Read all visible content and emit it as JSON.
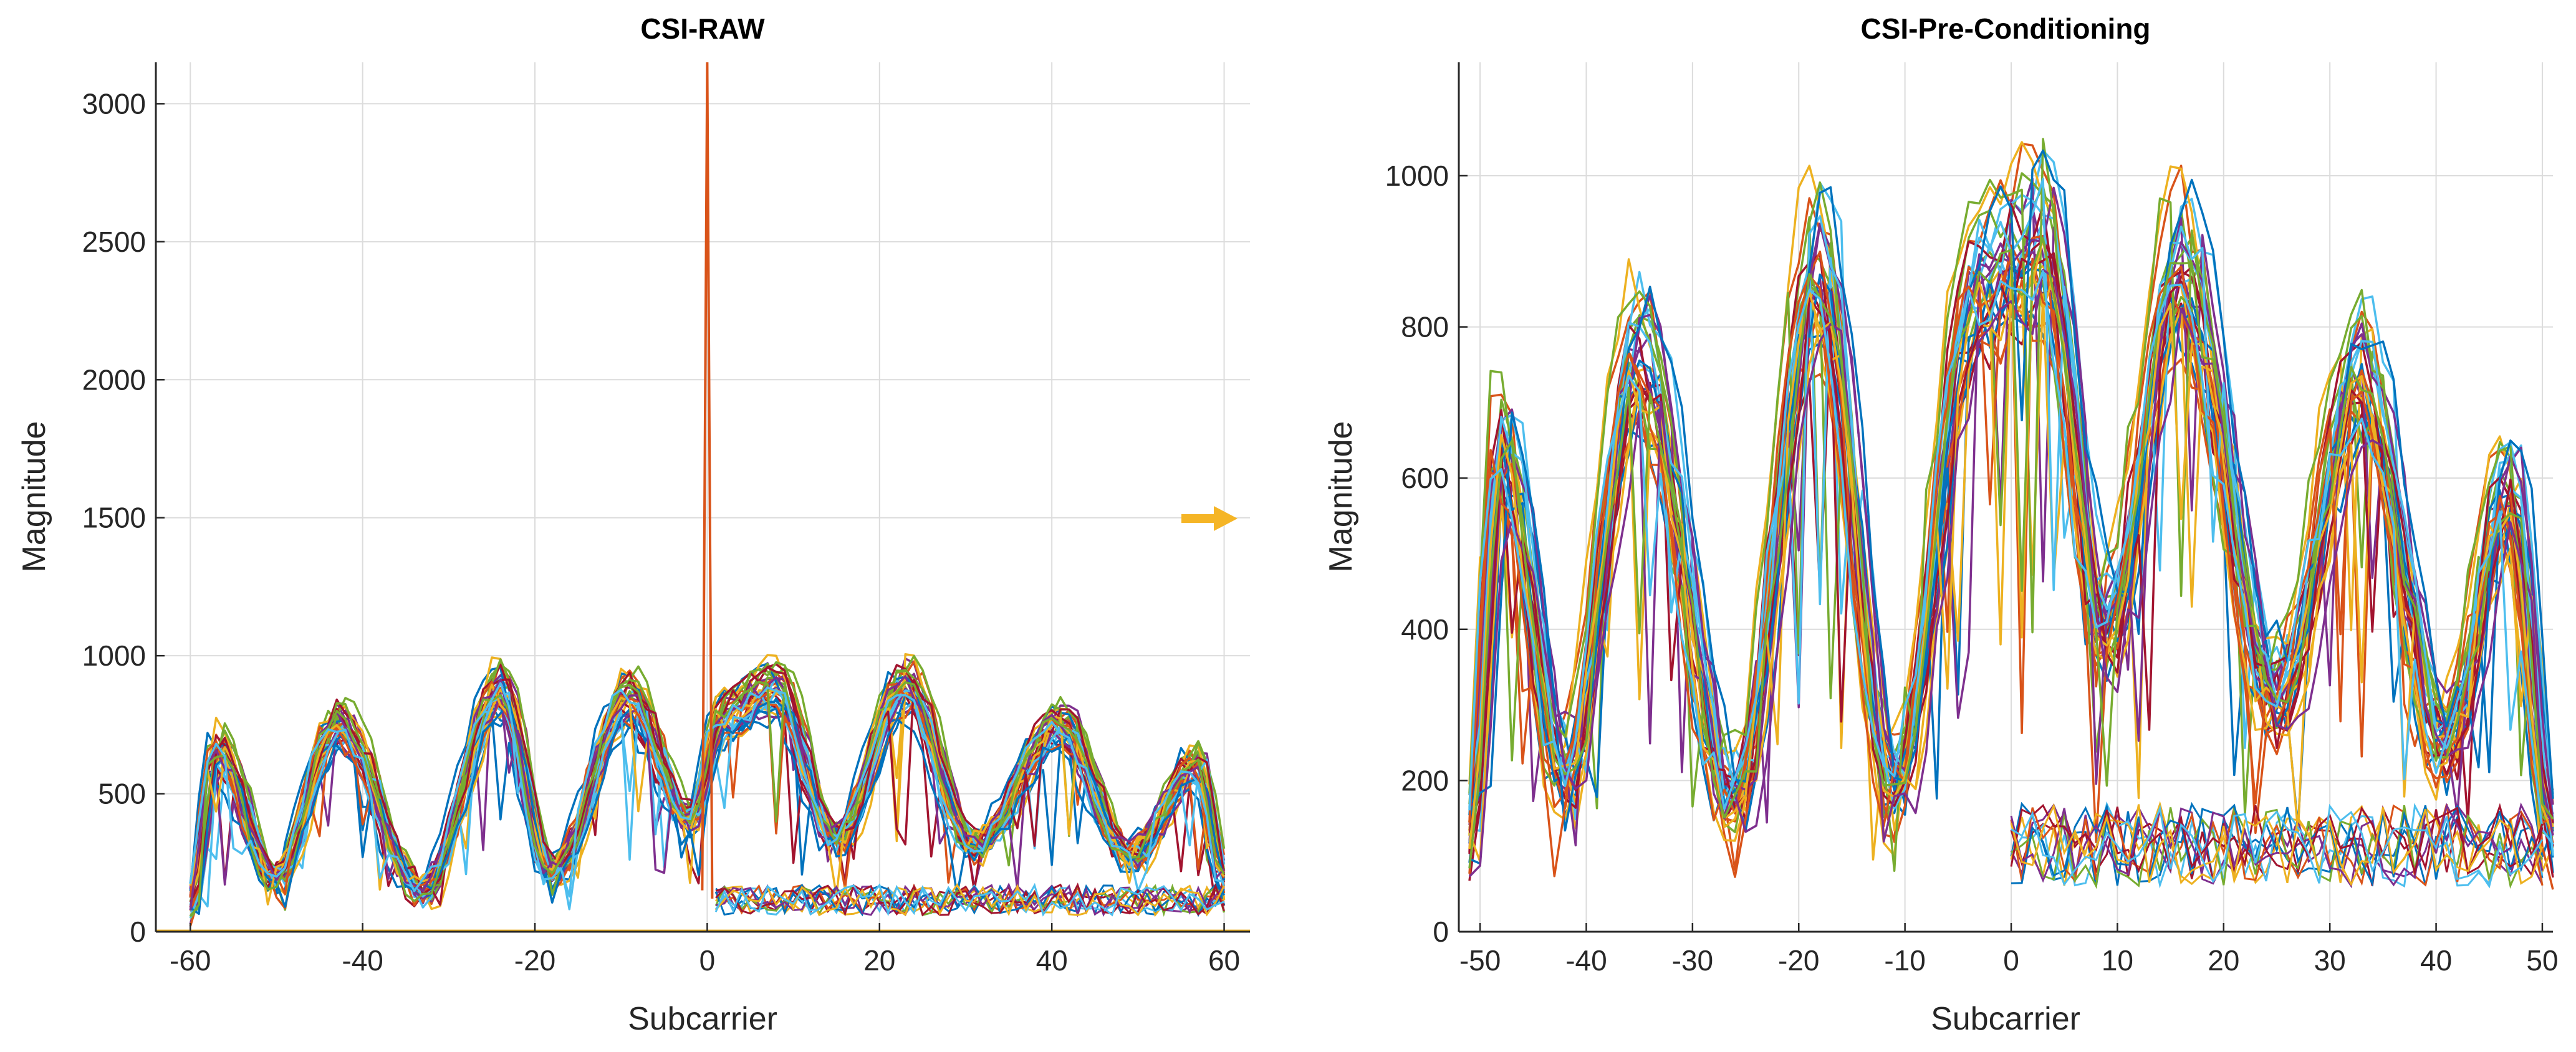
{
  "chart_data": [
    {
      "type": "line",
      "title": "CSI-RAW",
      "xlabel": "Subcarrier",
      "ylabel": "Magnitude",
      "xlim": [
        -64,
        63
      ],
      "ylim": [
        0,
        3150
      ],
      "grid": true,
      "xticks": [
        -60,
        -40,
        -20,
        0,
        20,
        40,
        60
      ],
      "yticks": [
        0,
        500,
        1000,
        1500,
        2000,
        2500,
        3000
      ],
      "xtick_labels": [
        "-60",
        "-40",
        "-20",
        "0",
        "20",
        "40",
        "60"
      ],
      "ytick_labels": [
        "0",
        "500",
        "1000",
        "1500",
        "2000",
        "2500",
        "3000"
      ],
      "series_description": "Many overlaid CSI magnitude traces per subcarrier, oscillating roughly between 150 and 1050; a spike near 3150 at subcarrier 0 and a bundle of low-magnitude traces (about 50-150) for subcarriers 1-60.",
      "envelope": {
        "x": [
          -60,
          -57,
          -50,
          -43,
          -33,
          -24,
          -18,
          -9,
          -2,
          2,
          8,
          15,
          23,
          31,
          41,
          49,
          57,
          60
        ],
        "y": [
          80,
          680,
          200,
          780,
          150,
          910,
          220,
          880,
          420,
          820,
          920,
          350,
          930,
          320,
          780,
          280,
          630,
          200
        ]
      },
      "spike": {
        "x": 0,
        "y": 3150
      }
    },
    {
      "type": "line",
      "title": "CSI-Pre-Conditioning",
      "xlabel": "Subcarrier",
      "ylabel": "Magnitude",
      "xlim": [
        -52,
        51
      ],
      "ylim": [
        0,
        1150
      ],
      "grid": true,
      "xticks": [
        -50,
        -40,
        -30,
        -20,
        -10,
        0,
        10,
        20,
        30,
        40,
        50
      ],
      "yticks": [
        0,
        200,
        400,
        600,
        800,
        1000
      ],
      "xtick_labels": [
        "-50",
        "-40",
        "-30",
        "-20",
        "-10",
        "0",
        "10",
        "20",
        "30",
        "40",
        "50"
      ],
      "ytick_labels": [
        "0",
        "200",
        "400",
        "600",
        "800",
        "1000"
      ],
      "series_description": "Subcarrier 0 and edge subcarriers removed; traces oscillate between roughly 150 and 1000 with a low bundle (about 50-150) for subcarriers 0-50.",
      "envelope": {
        "x": [
          -51,
          -48,
          -42,
          -35,
          -26,
          -18,
          -11,
          -3,
          3,
          9,
          16,
          25,
          33,
          41,
          47,
          51
        ],
        "y": [
          120,
          680,
          220,
          800,
          180,
          920,
          200,
          900,
          960,
          420,
          920,
          330,
          770,
          260,
          620,
          140
        ]
      }
    }
  ],
  "colors": {
    "series_palette": [
      "#0072BD",
      "#D95319",
      "#EDB120",
      "#7E2F8E",
      "#77AC30",
      "#4DBEEE",
      "#A2142F"
    ],
    "arrow": "#F5B526",
    "grid": "#DCDCDC",
    "axis": "#262626"
  },
  "icons": {
    "transform_arrow": "right-arrow-icon"
  }
}
